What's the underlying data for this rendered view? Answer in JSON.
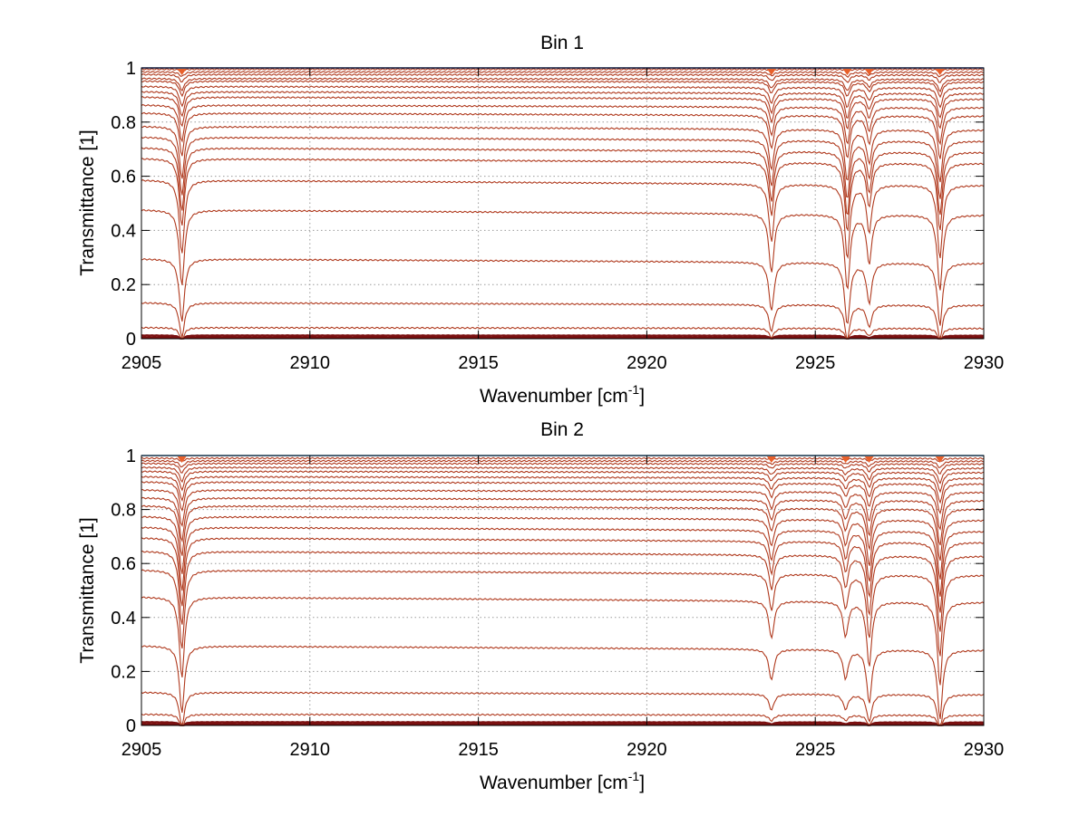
{
  "chart_data": [
    {
      "type": "line",
      "title": "Bin 1",
      "xlabel": "Wavenumber [cm",
      "xlabel_sup": "-1",
      "xlabel_end": "]",
      "ylabel": "Transmittance [1]",
      "xlim": [
        2905,
        2930
      ],
      "ylim": [
        0,
        1
      ],
      "xticks": [
        "2905",
        "2910",
        "2915",
        "2920",
        "2925",
        "2930"
      ],
      "yticks": [
        "0",
        "0.2",
        "0.4",
        "0.6",
        "0.8",
        "1"
      ],
      "grid": true,
      "top_line_color": "#1f3faa",
      "curve_color": "#b03a1e",
      "line_peaks": [
        {
          "x": 2906.2,
          "d": 0.28
        },
        {
          "x": 2923.7,
          "d": 0.22
        },
        {
          "x": 2925.95,
          "d": 0.28
        },
        {
          "x": 2926.6,
          "d": 0.18
        },
        {
          "x": 2928.7,
          "d": 0.28
        }
      ],
      "series_baseline_y": [
        0.005,
        0.012,
        0.04,
        0.13,
        0.29,
        0.47,
        0.58,
        0.66,
        0.7,
        0.74,
        0.78,
        0.83,
        0.86,
        0.89,
        0.91,
        0.93,
        0.95,
        0.96,
        0.975,
        0.985,
        0.995,
        1.0
      ]
    },
    {
      "type": "line",
      "title": "Bin 2",
      "xlabel": "Wavenumber [cm",
      "xlabel_sup": "-1",
      "xlabel_end": "]",
      "ylabel": "Transmittance [1]",
      "xlim": [
        2905,
        2930
      ],
      "ylim": [
        0,
        1
      ],
      "xticks": [
        "2905",
        "2910",
        "2915",
        "2920",
        "2925",
        "2930"
      ],
      "yticks": [
        "0",
        "0.2",
        "0.4",
        "0.6",
        "0.8",
        "1"
      ],
      "grid": true,
      "top_line_color": "#3a8fd8",
      "curve_color": "#b03a1e",
      "line_peaks": [
        {
          "x": 2906.2,
          "d": 0.3
        },
        {
          "x": 2923.7,
          "d": 0.14
        },
        {
          "x": 2925.9,
          "d": 0.13
        },
        {
          "x": 2926.6,
          "d": 0.24
        },
        {
          "x": 2928.7,
          "d": 0.31
        }
      ],
      "series_baseline_y": [
        0.005,
        0.012,
        0.04,
        0.12,
        0.29,
        0.47,
        0.57,
        0.64,
        0.69,
        0.73,
        0.77,
        0.81,
        0.84,
        0.87,
        0.9,
        0.92,
        0.94,
        0.955,
        0.97,
        0.98,
        0.99,
        1.0
      ]
    }
  ]
}
